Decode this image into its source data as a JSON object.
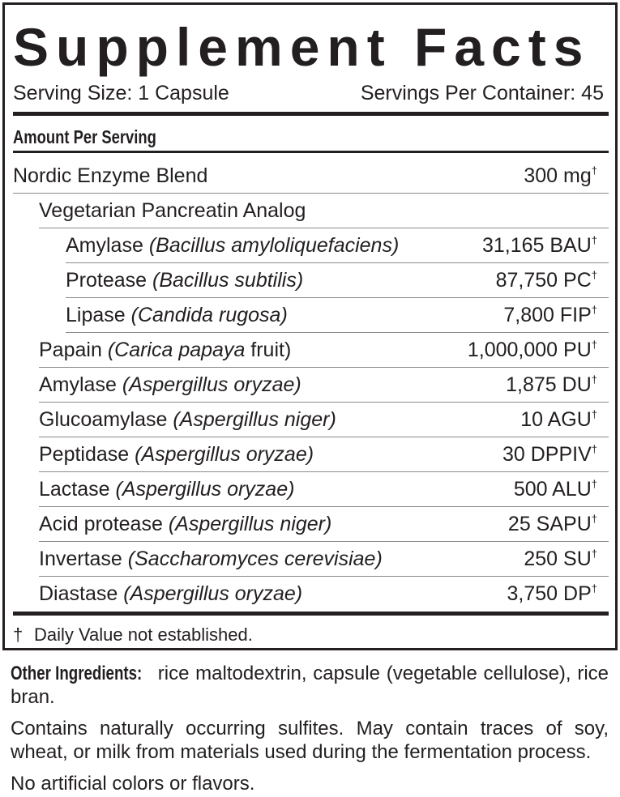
{
  "title": "Supplement Facts",
  "serving_size": "Serving Size: 1 Capsule",
  "servings_per_container": "Servings Per Container: 45",
  "amount_per_serving": "Amount Per Serving",
  "rows": [
    {
      "name": "Nordic Enzyme Blend",
      "source": "",
      "suffix": "",
      "amount": "300 mg",
      "mark": "†",
      "indent": 0
    },
    {
      "name": "Vegetarian Pancreatin Analog",
      "source": "",
      "suffix": "",
      "amount": "",
      "mark": "",
      "indent": 1
    },
    {
      "name": "Amylase",
      "source": "(Bacillus amyloliquefaciens)",
      "suffix": "",
      "amount": "31,165 BAU",
      "mark": "†",
      "indent": 2
    },
    {
      "name": "Protease",
      "source": "(Bacillus subtilis)",
      "suffix": "",
      "amount": "87,750 PC",
      "mark": "†",
      "indent": 2
    },
    {
      "name": "Lipase",
      "source": "(Candida rugosa)",
      "suffix": "",
      "amount": "7,800 FIP",
      "mark": "†",
      "indent": 2
    },
    {
      "name": "Papain",
      "source": "(Carica papaya",
      "suffix": " fruit)",
      "amount": "1,000,000 PU",
      "mark": "†",
      "indent": 1
    },
    {
      "name": "Amylase",
      "source": "(Aspergillus oryzae)",
      "suffix": "",
      "amount": "1,875 DU",
      "mark": "†",
      "indent": 1
    },
    {
      "name": "Glucoamylase",
      "source": "(Aspergillus niger)",
      "suffix": "",
      "amount": "10 AGU",
      "mark": "†",
      "indent": 1
    },
    {
      "name": "Peptidase",
      "source": "(Aspergillus oryzae)",
      "suffix": "",
      "amount": "30 DPPIV",
      "mark": "†",
      "indent": 1
    },
    {
      "name": "Lactase",
      "source": "(Aspergillus oryzae)",
      "suffix": "",
      "amount": "500 ALU",
      "mark": "†",
      "indent": 1
    },
    {
      "name": "Acid protease",
      "source": "(Aspergillus niger)",
      "suffix": "",
      "amount": "25 SAPU",
      "mark": "†",
      "indent": 1
    },
    {
      "name": "Invertase",
      "source": "(Saccharomyces cerevisiae)",
      "suffix": "",
      "amount": "250 SU",
      "mark": "†",
      "indent": 1
    },
    {
      "name": "Diastase",
      "source": "(Aspergillus oryzae)",
      "suffix": "",
      "amount": "3,750 DP",
      "mark": "†",
      "indent": 1
    }
  ],
  "footnote": {
    "mark": "†",
    "text": "Daily Value not established."
  },
  "other_ingredients": {
    "label": "Other Ingredients:",
    "text": " rice maltodextrin, capsule (vegetable cellulose), rice bran."
  },
  "allergen_note": "Contains naturally occurring sulfites. May contain traces of soy, wheat, or milk from materials used during the fermentation process.",
  "no_artificial": "No artificial colors or flavors."
}
